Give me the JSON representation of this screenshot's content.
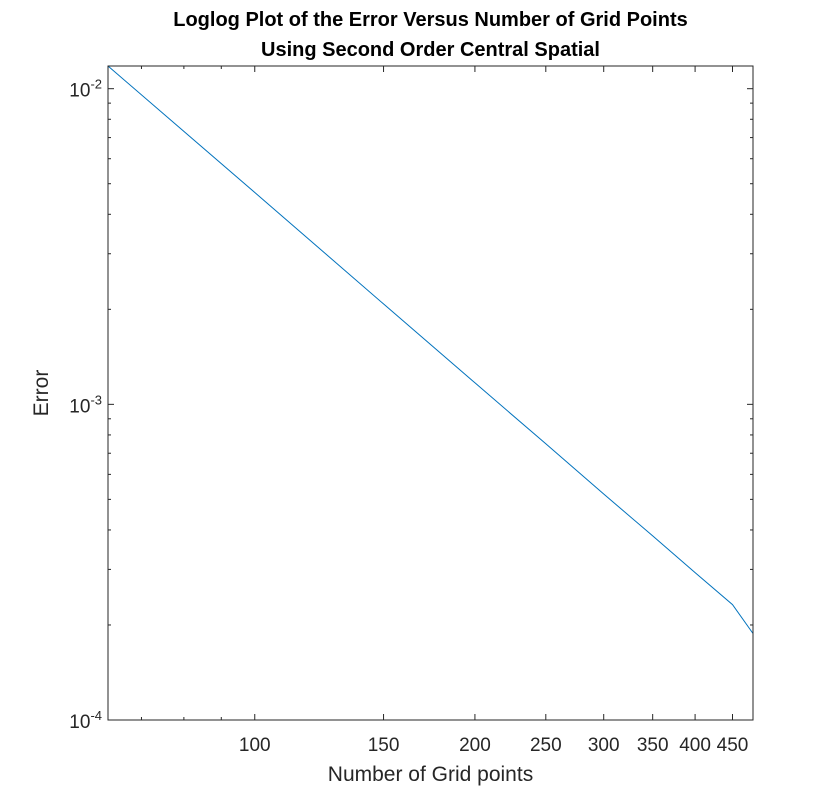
{
  "chart_data": {
    "type": "line",
    "title": [
      "Loglog Plot of the Error Versus Number of Grid Points",
      "Using Second Order Central Spatial"
    ],
    "xlabel": "Number of Grid points",
    "ylabel": "Error",
    "xscale": "log",
    "yscale": "log",
    "xlim": [
      63,
      480
    ],
    "ylim": [
      0.0001,
      0.0118
    ],
    "grid": false,
    "box": true,
    "x_ticks": [
      {
        "value": 100,
        "label": "100"
      },
      {
        "value": 150,
        "label": "150"
      },
      {
        "value": 200,
        "label": "200"
      },
      {
        "value": 250,
        "label": "250"
      },
      {
        "value": 300,
        "label": "300"
      },
      {
        "value": 350,
        "label": "350"
      },
      {
        "value": 400,
        "label": "400"
      },
      {
        "value": 450,
        "label": "450"
      }
    ],
    "y_ticks": [
      {
        "value": 0.0001,
        "base": "10",
        "exponent": "-4"
      },
      {
        "value": 0.001,
        "base": "10",
        "exponent": "-3"
      },
      {
        "value": 0.01,
        "base": "10",
        "exponent": "-2"
      }
    ],
    "series": [
      {
        "color": "#0072BD",
        "x": [
          63,
          100,
          150,
          200,
          250,
          300,
          350,
          400,
          450,
          480
        ],
        "y": [
          0.0118,
          0.00469,
          0.00208,
          0.00117,
          0.00075,
          0.00052,
          0.000383,
          0.000293,
          0.000232,
          0.000188
        ]
      }
    ]
  }
}
